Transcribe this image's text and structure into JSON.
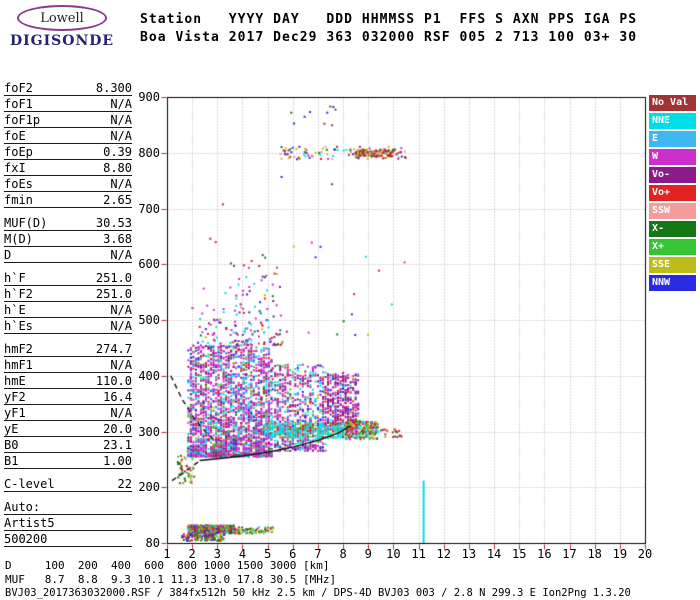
{
  "logo": {
    "name": "Lowell",
    "brand": "DIGISONDE"
  },
  "header": {
    "line1": "Station   YYYY DAY   DDD HHMMSS P1  FFS S AXN PPS IGA PS",
    "line2": "Boa Vista 2017 Dec29 363 032000 RSF 005 2 713 100 03+ 30"
  },
  "params": {
    "groups": [
      {
        "rows": [
          {
            "label": "foF2",
            "value": "8.300"
          },
          {
            "label": "foF1",
            "value": "N/A"
          },
          {
            "label": "foF1p",
            "value": "N/A"
          },
          {
            "label": "foE",
            "value": "N/A"
          },
          {
            "label": "foEp",
            "value": "0.39"
          },
          {
            "label": "fxI",
            "value": "8.80"
          },
          {
            "label": "foEs",
            "value": "N/A"
          },
          {
            "label": "fmin",
            "value": "2.65"
          }
        ]
      },
      {
        "rows": [
          {
            "label": "MUF(D)",
            "value": "30.53"
          },
          {
            "label": "M(D)",
            "value": "3.68"
          },
          {
            "label": "D",
            "value": "N/A"
          }
        ]
      },
      {
        "rows": [
          {
            "label": "h`F",
            "value": "251.0"
          },
          {
            "label": "h`F2",
            "value": "251.0"
          },
          {
            "label": "h`E",
            "value": "N/A"
          },
          {
            "label": "h`Es",
            "value": "N/A"
          }
        ]
      },
      {
        "rows": [
          {
            "label": "hmF2",
            "value": "274.7"
          },
          {
            "label": "hmF1",
            "value": "N/A"
          },
          {
            "label": "hmE",
            "value": "110.0"
          },
          {
            "label": "yF2",
            "value": "16.4"
          },
          {
            "label": "yF1",
            "value": "N/A"
          },
          {
            "label": "yE",
            "value": "20.0"
          },
          {
            "label": "B0",
            "value": "23.1"
          },
          {
            "label": "B1",
            "value": "1.00"
          }
        ]
      },
      {
        "rows": [
          {
            "label": "C-level",
            "value": "22"
          }
        ]
      },
      {
        "rows": [
          {
            "label": "Auto:",
            "value": ""
          },
          {
            "label": "Artist5",
            "value": ""
          },
          {
            "label": "500200",
            "value": ""
          }
        ]
      }
    ]
  },
  "legend": {
    "items": [
      {
        "label": "No Val",
        "color": "#a03434"
      },
      {
        "label": "NNE",
        "color": "#00dfe8"
      },
      {
        "label": "E",
        "color": "#3fb8f0"
      },
      {
        "label": "W",
        "color": "#cc2fcc"
      },
      {
        "label": "Vo-",
        "color": "#8b1a8b"
      },
      {
        "label": "Vo+",
        "color": "#e32222"
      },
      {
        "label": "SSW",
        "color": "#f49c9c"
      },
      {
        "label": "X-",
        "color": "#157815"
      },
      {
        "label": "X+",
        "color": "#35c435"
      },
      {
        "label": "SSE",
        "color": "#bcbc1a"
      },
      {
        "label": "NNW",
        "color": "#2a2ae0"
      }
    ]
  },
  "chart_data": {
    "type": "scatter",
    "title": "Digisonde ionogram, Boa Vista, 2017 Dec29 363 032000",
    "xlabel": "[MHz]",
    "ylabel": "[km]",
    "xlim": [
      1,
      20
    ],
    "x_ticks": [
      1,
      2,
      3,
      4,
      5,
      6,
      7,
      8,
      9,
      10,
      11,
      12,
      13,
      14,
      15,
      16,
      17,
      18,
      19,
      20
    ],
    "y_ticks": [
      900,
      800,
      700,
      600,
      500,
      400,
      300,
      200,
      80
    ],
    "y_scale_note": "linear 200-900 km; compressed bottom segment 80-200 km",
    "grid": true,
    "tick_color": "#cc2222",
    "grid_color": "#b5b5b5",
    "clusters": [
      {
        "name": "f-region-core",
        "f": [
          1.85,
          5.2
        ],
        "h": [
          255,
          455
        ],
        "n": 2300,
        "bias": 1.5,
        "quant": 0.1,
        "colors": [
          [
            "W",
            40
          ],
          [
            "Vo-",
            14
          ],
          [
            "NNE",
            13
          ],
          [
            "E",
            8
          ],
          [
            "NNW",
            7
          ],
          [
            "Vo+",
            6
          ],
          [
            "X-",
            4
          ],
          [
            "X+",
            4
          ],
          [
            "SSE",
            2
          ],
          [
            "NoVal",
            2
          ]
        ]
      },
      {
        "name": "f-region-mid",
        "f": [
          5.2,
          7.3
        ],
        "h": [
          265,
          420
        ],
        "n": 620,
        "bias": 1.3,
        "quant": 0.1,
        "colors": [
          [
            "W",
            28
          ],
          [
            "Vo-",
            26
          ],
          [
            "NNE",
            18
          ],
          [
            "NNW",
            9
          ],
          [
            "Vo+",
            7
          ],
          [
            "E",
            5
          ],
          [
            "X+",
            4
          ],
          [
            "SSE",
            3
          ]
        ]
      },
      {
        "name": "f-region-high",
        "f": [
          7.2,
          8.6
        ],
        "h": [
          300,
          405
        ],
        "n": 420,
        "bias": 1.0,
        "quant": 0.1,
        "colors": [
          [
            "Vo-",
            45
          ],
          [
            "W",
            25
          ],
          [
            "NNW",
            10
          ],
          [
            "Vo+",
            8
          ],
          [
            "NNE",
            7
          ],
          [
            "SSE",
            5
          ]
        ]
      },
      {
        "name": "trace-band",
        "f": [
          4.9,
          8.3
        ],
        "h": [
          288,
          316
        ],
        "n": 400,
        "bias": 1.0,
        "quant": 0.1,
        "colors": [
          [
            "NNE",
            52
          ],
          [
            "E",
            14
          ],
          [
            "X+",
            8
          ],
          [
            "SSE",
            8
          ],
          [
            "Vo+",
            8
          ],
          [
            "NoVal",
            10
          ]
        ]
      },
      {
        "name": "cusp-cluster",
        "f": [
          8.1,
          9.4
        ],
        "h": [
          286,
          318
        ],
        "n": 230,
        "bias": 1.0,
        "colors": [
          [
            "SSE",
            18
          ],
          [
            "X+",
            16
          ],
          [
            "Vo+",
            16
          ],
          [
            "NoVal",
            16
          ],
          [
            "W",
            12
          ],
          [
            "NNE",
            12
          ],
          [
            "X-",
            10
          ]
        ]
      },
      {
        "name": "spread-plume",
        "f": [
          3.6,
          5.6
        ],
        "h": [
          455,
          620
        ],
        "n": 120,
        "bias": 2.2,
        "colors": [
          [
            "W",
            25
          ],
          [
            "Vo-",
            20
          ],
          [
            "NNE",
            15
          ],
          [
            "NNW",
            12
          ],
          [
            "Vo+",
            10
          ],
          [
            "X-",
            6
          ],
          [
            "SSE",
            6
          ],
          [
            "E",
            6
          ]
        ]
      },
      {
        "name": "plume-left",
        "f": [
          2.2,
          3.8
        ],
        "h": [
          450,
          560
        ],
        "n": 55,
        "bias": 1.8,
        "colors": [
          [
            "W",
            30
          ],
          [
            "NNE",
            20
          ],
          [
            "Vo-",
            20
          ],
          [
            "NNW",
            10
          ],
          [
            "Vo+",
            10
          ],
          [
            "SSE",
            10
          ]
        ]
      },
      {
        "name": "second-hop-band",
        "f": [
          5.5,
          10.5
        ],
        "h": [
          788,
          812
        ],
        "n": 100,
        "bias": 1.0,
        "colors": [
          [
            "NNW",
            20
          ],
          [
            "Vo+",
            16
          ],
          [
            "NoVal",
            16
          ],
          [
            "X-",
            10
          ],
          [
            "SSW",
            10
          ],
          [
            "W",
            8
          ],
          [
            "SSE",
            10
          ],
          [
            "NNE",
            10
          ]
        ]
      },
      {
        "name": "second-hop-dense",
        "f": [
          8.5,
          10.0
        ],
        "h": [
          793,
          806
        ],
        "n": 110,
        "bias": 1.0,
        "colors": [
          [
            "NoVal",
            30
          ],
          [
            "Vo+",
            25
          ],
          [
            "SSE",
            20
          ],
          [
            "SSW",
            15
          ],
          [
            "X-",
            10
          ]
        ]
      },
      {
        "name": "e-region-band",
        "f": [
          1.85,
          3.7
        ],
        "h": [
          100,
          118
        ],
        "n": 500,
        "bias": 1.0,
        "colors": [
          [
            "X+",
            18
          ],
          [
            "SSE",
            16
          ],
          [
            "Vo+",
            14
          ],
          [
            "X-",
            12
          ],
          [
            "NNE",
            10
          ],
          [
            "NoVal",
            12
          ],
          [
            "W",
            9
          ],
          [
            "NNW",
            9
          ]
        ]
      },
      {
        "name": "e-region-ext",
        "f": [
          3.7,
          5.2
        ],
        "h": [
          100,
          114
        ],
        "n": 70,
        "bias": 1.0,
        "colors": [
          [
            "SSE",
            25
          ],
          [
            "X+",
            20
          ],
          [
            "Vo+",
            15
          ],
          [
            "NoVal",
            15
          ],
          [
            "X-",
            15
          ],
          [
            "NNE",
            10
          ]
        ]
      },
      {
        "name": "e-region-low",
        "f": [
          1.6,
          3.3
        ],
        "h": [
          84,
          99
        ],
        "n": 110,
        "bias": 1.0,
        "colors": [
          [
            "NoVal",
            28
          ],
          [
            "X-",
            20
          ],
          [
            "NNW",
            18
          ],
          [
            "Vo+",
            16
          ],
          [
            "X+",
            18
          ]
        ]
      },
      {
        "name": "left-sparse",
        "f": [
          1.35,
          2.1
        ],
        "h": [
          205,
          265
        ],
        "n": 45,
        "bias": 1.0,
        "colors": [
          [
            "X-",
            20
          ],
          [
            "X+",
            20
          ],
          [
            "NoVal",
            20
          ],
          [
            "SSE",
            20
          ],
          [
            "Vo+",
            20
          ]
        ]
      },
      {
        "name": "post-cusp-sparse",
        "f": [
          9.4,
          10.4
        ],
        "h": [
          290,
          306
        ],
        "n": 20,
        "bias": 1.0,
        "colors": [
          [
            "X-",
            25
          ],
          [
            "NoVal",
            25
          ],
          [
            "SSE",
            25
          ],
          [
            "Vo+",
            25
          ]
        ]
      },
      {
        "name": "sky-noise",
        "f": [
          2.0,
          11.5
        ],
        "h": [
          470,
          760
        ],
        "n": 30,
        "bias": 1.0,
        "colors": [
          [
            "NoVal",
            15
          ],
          [
            "NNW",
            15
          ],
          [
            "W",
            14
          ],
          [
            "NNE",
            14
          ],
          [
            "Vo+",
            14
          ],
          [
            "X-",
            14
          ],
          [
            "SSE",
            14
          ]
        ]
      },
      {
        "name": "top-noise",
        "f": [
          5.8,
          7.8
        ],
        "h": [
          848,
          884
        ],
        "n": 10,
        "bias": 1.0,
        "colors": [
          [
            "NNW",
            30
          ],
          [
            "Vo+",
            25
          ],
          [
            "NoVal",
            25
          ],
          [
            "X-",
            20
          ]
        ]
      }
    ],
    "traces": {
      "solid": [
        [
          2.3,
          248
        ],
        [
          3.0,
          251
        ],
        [
          4.0,
          256
        ],
        [
          5.0,
          263
        ],
        [
          6.0,
          272
        ],
        [
          7.0,
          284
        ],
        [
          7.8,
          297
        ],
        [
          8.3,
          310
        ]
      ],
      "dashed": [
        [
          [
            1.15,
            400
          ],
          [
            1.6,
            358
          ],
          [
            2.1,
            322
          ],
          [
            2.6,
            296
          ],
          [
            3.0,
            280
          ]
        ],
        [
          [
            1.2,
            212
          ],
          [
            1.6,
            224
          ],
          [
            2.0,
            238
          ],
          [
            2.3,
            247
          ]
        ]
      ]
    },
    "spike": {
      "f": 11.2,
      "h0": 80,
      "h1": 212,
      "color": "NNE"
    }
  },
  "dmuf": {
    "row1_label": "D",
    "row2_label": "MUF",
    "d_values": [
      "100",
      "200",
      "400",
      "600",
      "800",
      "1000",
      "1500",
      "3000"
    ],
    "d_unit": "[km]",
    "muf_values": [
      "8.7",
      "8.8",
      "9.3",
      "10.1",
      "11.3",
      "13.0",
      "17.8",
      "30.5"
    ],
    "muf_unit": "[MHz]"
  },
  "footer": {
    "text": "BVJ03_2017363032000.RSF / 384fx512h 50 kHz 2.5 km / DPS-4D BVJ03 003 / 2.8 N 299.3 E Ion2Png 1.3.20"
  }
}
